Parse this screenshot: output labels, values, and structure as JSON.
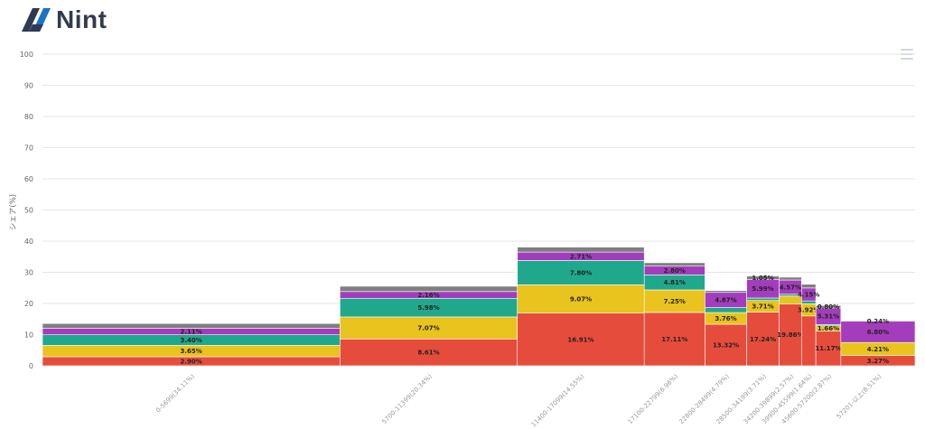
{
  "brand": {
    "name": "Nint"
  },
  "colors": {
    "red": "#e64c3c",
    "yellow": "#e9c31e",
    "teal": "#20a88c",
    "purple": "#a33dbd",
    "gray": "#7f7f7f",
    "grid": "#e6e6e6"
  },
  "chart_data": {
    "type": "marimekko",
    "title": "",
    "ylabel": "シェア(%)",
    "xlabel": "",
    "ylim": [
      0,
      100
    ],
    "yticks": [
      0,
      10,
      20,
      30,
      40,
      50,
      60,
      70,
      80,
      90,
      100
    ],
    "categories": [
      "0-5699(34.11%)",
      "5700-11399(20.34%)",
      "11400-17099(14.55%)",
      "17100-22799(6.96%)",
      "22800-28499(4.79%)",
      "28500-34199(3.71%)",
      "34200-39899(2.57%)",
      "39900-45599(1.64%)",
      "45600-57200(2.87%)",
      "57201-以上(8.51%)"
    ],
    "widths": [
      34.11,
      20.34,
      14.55,
      6.96,
      4.79,
      3.71,
      2.57,
      1.64,
      2.87,
      8.51
    ],
    "series": [
      {
        "name": "red",
        "color": "#e64c3c",
        "values": [
          2.9,
          8.61,
          16.91,
          17.11,
          13.32,
          17.24,
          19.86,
          16.0,
          11.17,
          3.27
        ]
      },
      {
        "name": "yellow",
        "color": "#e9c31e",
        "values": [
          3.65,
          7.07,
          9.07,
          7.25,
          3.76,
          3.71,
          2.5,
          3.92,
          1.66,
          4.21
        ]
      },
      {
        "name": "teal",
        "color": "#20a88c",
        "values": [
          3.4,
          5.98,
          7.8,
          4.81,
          1.6,
          0.8,
          0.6,
          0.9,
          0.4,
          0
        ]
      },
      {
        "name": "purple",
        "color": "#a33dbd",
        "values": [
          2.11,
          2.16,
          2.71,
          2.8,
          4.87,
          5.99,
          4.57,
          4.15,
          5.31,
          6.8
        ]
      },
      {
        "name": "gray",
        "color": "#7f7f7f",
        "values": [
          1.5,
          1.7,
          1.6,
          1.1,
          0.6,
          1.05,
          0.9,
          1.2,
          0.8,
          0.24
        ]
      }
    ],
    "labels": [
      [
        "2.90%",
        "3.65%",
        "3.40%",
        "2.11%",
        ""
      ],
      [
        "8.61%",
        "7.07%",
        "5.98%",
        "2.16%",
        ""
      ],
      [
        "16.91%",
        "9.07%",
        "7.80%",
        "2.71%",
        ""
      ],
      [
        "17.11%",
        "7.25%",
        "4.81%",
        "2.80%",
        ""
      ],
      [
        "13.32%",
        "3.76%",
        "",
        "4.87%",
        ""
      ],
      [
        "17.24%",
        "3.71%",
        "",
        "5.99%",
        "1.05%"
      ],
      [
        "19.86%",
        "",
        "",
        "4.57%",
        ""
      ],
      [
        "",
        "3.92%",
        "",
        "4.15%",
        ""
      ],
      [
        "11.17%",
        "1.66%",
        "",
        "5.31%",
        "0.80%"
      ],
      [
        "3.27%",
        "4.21%",
        "",
        "6.80%",
        "0.24%"
      ]
    ]
  }
}
